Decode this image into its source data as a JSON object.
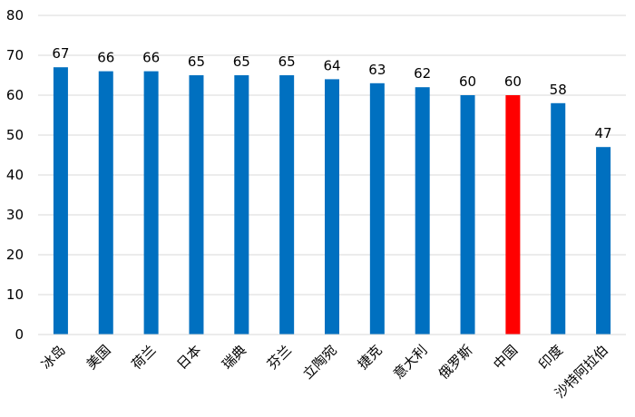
{
  "chart_data": {
    "type": "bar",
    "categories": [
      "冰岛",
      "美国",
      "荷兰",
      "日本",
      "瑞典",
      "芬兰",
      "立陶宛",
      "捷克",
      "意大利",
      "俄罗斯",
      "中国",
      "印度",
      "沙特阿拉伯"
    ],
    "values": [
      67,
      66,
      66,
      65,
      65,
      65,
      64,
      63,
      62,
      60,
      60,
      58,
      47
    ],
    "ylim": [
      0,
      80
    ],
    "yticks": [
      "0",
      "10",
      "20",
      "30",
      "40",
      "50",
      "60",
      "70",
      "80"
    ],
    "grid": true,
    "legend": "none",
    "bar_color": "#0070C0",
    "highlight_category": "中国",
    "highlight_color": "#FF0000",
    "title": "",
    "xlabel": "",
    "ylabel": ""
  }
}
